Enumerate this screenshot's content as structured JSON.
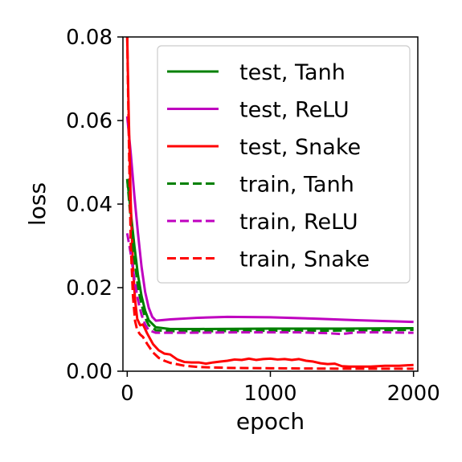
{
  "chart_data": {
    "type": "line",
    "xlabel": "epoch",
    "ylabel": "loss",
    "xlim": [
      -30,
      2030
    ],
    "ylim": [
      0,
      0.08
    ],
    "xticks": [
      0,
      1000,
      2000
    ],
    "xtick_labels": [
      "0",
      "1000",
      "2000"
    ],
    "yticks": [
      0,
      0.02,
      0.04,
      0.06,
      0.08
    ],
    "ytick_labels": [
      "0.00",
      "0.02",
      "0.04",
      "0.06",
      "0.08"
    ],
    "grid": false,
    "legend_position": "top-right",
    "series": [
      {
        "name": "test, Tanh",
        "color": "#008000",
        "dash": "solid",
        "points": [
          [
            0,
            0.046
          ],
          [
            25,
            0.038
          ],
          [
            50,
            0.03
          ],
          [
            75,
            0.023
          ],
          [
            100,
            0.018
          ],
          [
            125,
            0.0145
          ],
          [
            150,
            0.0122
          ],
          [
            200,
            0.0105
          ],
          [
            300,
            0.0101
          ],
          [
            500,
            0.0101
          ],
          [
            1000,
            0.0102
          ],
          [
            1500,
            0.0102
          ],
          [
            2000,
            0.0103
          ]
        ]
      },
      {
        "name": "test, ReLU",
        "color": "#bf00bf",
        "dash": "solid",
        "points": [
          [
            0,
            0.061
          ],
          [
            25,
            0.052
          ],
          [
            50,
            0.042
          ],
          [
            75,
            0.033
          ],
          [
            100,
            0.025
          ],
          [
            125,
            0.019
          ],
          [
            150,
            0.0152
          ],
          [
            175,
            0.013
          ],
          [
            200,
            0.0121
          ],
          [
            300,
            0.0124
          ],
          [
            500,
            0.0128
          ],
          [
            700,
            0.013
          ],
          [
            1000,
            0.0129
          ],
          [
            1300,
            0.0126
          ],
          [
            1600,
            0.0122
          ],
          [
            2000,
            0.0118
          ]
        ]
      },
      {
        "name": "test, Snake",
        "color": "#ff0000",
        "dash": "solid",
        "points": [
          [
            0,
            0.08
          ],
          [
            10,
            0.062
          ],
          [
            25,
            0.04
          ],
          [
            40,
            0.025
          ],
          [
            55,
            0.017
          ],
          [
            70,
            0.0125
          ],
          [
            90,
            0.011
          ],
          [
            110,
            0.0112
          ],
          [
            140,
            0.009
          ],
          [
            180,
            0.0065
          ],
          [
            220,
            0.005
          ],
          [
            260,
            0.0042
          ],
          [
            300,
            0.004
          ],
          [
            350,
            0.0028
          ],
          [
            400,
            0.0022
          ],
          [
            450,
            0.0021
          ],
          [
            500,
            0.0021
          ],
          [
            550,
            0.0018
          ],
          [
            600,
            0.0021
          ],
          [
            650,
            0.0023
          ],
          [
            700,
            0.0025
          ],
          [
            750,
            0.0028
          ],
          [
            800,
            0.0027
          ],
          [
            850,
            0.003
          ],
          [
            900,
            0.0027
          ],
          [
            950,
            0.0029
          ],
          [
            1000,
            0.003
          ],
          [
            1050,
            0.0028
          ],
          [
            1100,
            0.0029
          ],
          [
            1150,
            0.0027
          ],
          [
            1200,
            0.0029
          ],
          [
            1250,
            0.0025
          ],
          [
            1300,
            0.0023
          ],
          [
            1350,
            0.0019
          ],
          [
            1400,
            0.0017
          ],
          [
            1450,
            0.0018
          ],
          [
            1500,
            0.0012
          ],
          [
            1550,
            0.0011
          ],
          [
            1600,
            0.0011
          ],
          [
            1700,
            0.0011
          ],
          [
            1800,
            0.0013
          ],
          [
            1900,
            0.0013
          ],
          [
            2000,
            0.0015
          ]
        ]
      },
      {
        "name": "train, Tanh",
        "color": "#008000",
        "dash": "dashed",
        "points": [
          [
            0,
            0.046
          ],
          [
            25,
            0.036
          ],
          [
            50,
            0.027
          ],
          [
            75,
            0.02
          ],
          [
            100,
            0.016
          ],
          [
            125,
            0.0128
          ],
          [
            150,
            0.011
          ],
          [
            200,
            0.0098
          ],
          [
            300,
            0.0096
          ],
          [
            600,
            0.0096
          ],
          [
            1000,
            0.0097
          ],
          [
            1400,
            0.0097
          ],
          [
            1700,
            0.0098
          ],
          [
            2000,
            0.0099
          ]
        ]
      },
      {
        "name": "train, ReLU",
        "color": "#bf00bf",
        "dash": "dashed",
        "points": [
          [
            0,
            0.033
          ],
          [
            25,
            0.028
          ],
          [
            50,
            0.022
          ],
          [
            75,
            0.017
          ],
          [
            100,
            0.0135
          ],
          [
            125,
            0.0112
          ],
          [
            150,
            0.0098
          ],
          [
            200,
            0.0092
          ],
          [
            400,
            0.0092
          ],
          [
            800,
            0.0093
          ],
          [
            1200,
            0.0093
          ],
          [
            1400,
            0.0091
          ],
          [
            1500,
            0.0089
          ],
          [
            1600,
            0.0093
          ],
          [
            1800,
            0.0093
          ],
          [
            2000,
            0.0092
          ]
        ]
      },
      {
        "name": "train, Snake",
        "color": "#ff0000",
        "dash": "dashed",
        "points": [
          [
            0,
            0.08
          ],
          [
            10,
            0.058
          ],
          [
            25,
            0.03
          ],
          [
            40,
            0.018
          ],
          [
            55,
            0.012
          ],
          [
            70,
            0.0098
          ],
          [
            90,
            0.0088
          ],
          [
            110,
            0.0082
          ],
          [
            140,
            0.0065
          ],
          [
            180,
            0.0045
          ],
          [
            220,
            0.0032
          ],
          [
            260,
            0.0025
          ],
          [
            300,
            0.002
          ],
          [
            400,
            0.0013
          ],
          [
            500,
            0.001
          ],
          [
            700,
            0.0008
          ],
          [
            1000,
            0.0007
          ],
          [
            1500,
            0.0006
          ],
          [
            2000,
            0.0006
          ]
        ]
      }
    ]
  }
}
